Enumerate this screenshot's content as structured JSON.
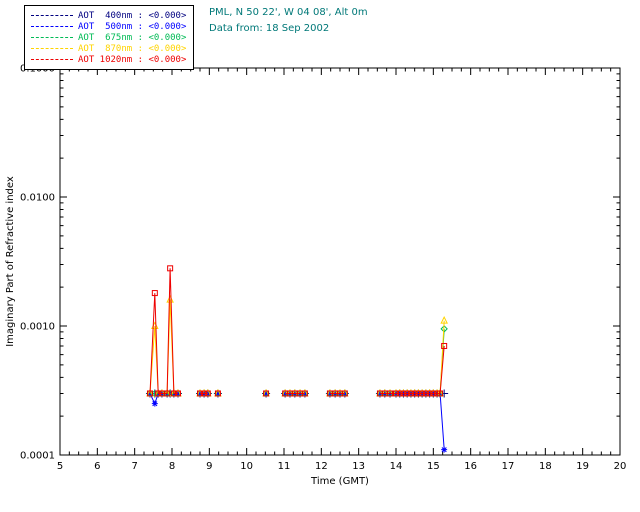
{
  "header": {
    "line1": "PML, N 50 22', W 04 08', Alt 0m",
    "line2": "Data from: 18 Sep 2002",
    "color": "#007878"
  },
  "legend": {
    "entries": [
      {
        "label": "AOT  400nm : <0.000>",
        "color": "#000080",
        "marker": "plus"
      },
      {
        "label": "AOT  500nm : <0.000>",
        "color": "#0000ff",
        "marker": "asterisk"
      },
      {
        "label": "AOT  675nm : <0.000>",
        "color": "#00bb55",
        "marker": "diamond"
      },
      {
        "label": "AOT  870nm : <0.000>",
        "color": "#ffd400",
        "marker": "triangle"
      },
      {
        "label": "AOT 1020nm : <0.000>",
        "color": "#ee0000",
        "marker": "square"
      }
    ]
  },
  "chart_data": {
    "type": "line",
    "title": "",
    "xlabel": "Time (GMT)",
    "ylabel": "Imaginary Part of Refractive index",
    "xlim": [
      5,
      20
    ],
    "ylim": [
      0.0001,
      0.1
    ],
    "yscale": "log",
    "grid": false,
    "legend_position": "top-left",
    "x_ticks": [
      5,
      6,
      7,
      8,
      9,
      10,
      11,
      12,
      13,
      14,
      15,
      16,
      17,
      18,
      19,
      20
    ],
    "y_ticks": [
      0.0001,
      0.001,
      0.01,
      0.1
    ],
    "y_tick_labels": [
      "0.0001",
      "0.0010",
      "0.0100",
      "0.1000"
    ],
    "x": [
      7.41,
      7.54,
      7.63,
      7.73,
      7.87,
      7.95,
      8.05,
      8.16,
      8.75,
      8.86,
      8.96,
      9.23,
      10.52,
      11.03,
      11.16,
      11.29,
      11.43,
      11.56,
      12.23,
      12.37,
      12.5,
      12.63,
      13.57,
      13.7,
      13.84,
      14.0,
      14.1,
      14.2,
      14.3,
      14.4,
      14.5,
      14.6,
      14.7,
      14.8,
      14.9,
      15.0,
      15.1,
      15.18,
      15.29
    ],
    "series": [
      {
        "name": "AOT 400nm",
        "color": "#000080",
        "marker": "plus",
        "values": [
          0.0003,
          0.0003,
          0.0003,
          0.0003,
          0.0003,
          0.0003,
          0.0003,
          0.0003,
          0.0003,
          0.0003,
          0.0003,
          0.0003,
          0.0003,
          0.0003,
          0.0003,
          0.0003,
          0.0003,
          0.0003,
          0.0003,
          0.0003,
          0.0003,
          0.0003,
          0.0003,
          0.0003,
          0.0003,
          0.0003,
          0.0003,
          0.0003,
          0.0003,
          0.0003,
          0.0003,
          0.0003,
          0.0003,
          0.0003,
          0.0003,
          0.0003,
          0.0003,
          0.0003,
          0.0003
        ]
      },
      {
        "name": "AOT 500nm",
        "color": "#0000ff",
        "marker": "asterisk",
        "values": [
          0.0003,
          0.00025,
          0.0003,
          0.0003,
          0.0003,
          0.0003,
          0.0003,
          0.0003,
          0.0003,
          0.0003,
          0.0003,
          0.0003,
          0.0003,
          0.0003,
          0.0003,
          0.0003,
          0.0003,
          0.0003,
          0.0003,
          0.0003,
          0.0003,
          0.0003,
          0.0003,
          0.0003,
          0.0003,
          0.0003,
          0.0003,
          0.0003,
          0.0003,
          0.0003,
          0.0003,
          0.0003,
          0.0003,
          0.0003,
          0.0003,
          0.0003,
          0.0003,
          0.0003,
          0.00011
        ]
      },
      {
        "name": "AOT 675nm",
        "color": "#00bb55",
        "marker": "diamond",
        "values": [
          0.0003,
          0.0003,
          0.0003,
          0.0003,
          0.0003,
          0.0003,
          0.0003,
          0.0003,
          0.0003,
          0.0003,
          0.0003,
          0.0003,
          0.0003,
          0.0003,
          0.0003,
          0.0003,
          0.0003,
          0.0003,
          0.0003,
          0.0003,
          0.0003,
          0.0003,
          0.0003,
          0.0003,
          0.0003,
          0.0003,
          0.0003,
          0.0003,
          0.0003,
          0.0003,
          0.0003,
          0.0003,
          0.0003,
          0.0003,
          0.0003,
          0.0003,
          0.0003,
          0.0003,
          0.00095
        ]
      },
      {
        "name": "AOT 870nm",
        "color": "#ffd400",
        "marker": "triangle",
        "values": [
          0.0003,
          0.001,
          0.0003,
          0.0003,
          0.0003,
          0.0016,
          0.0003,
          0.0003,
          0.0003,
          0.0003,
          0.0003,
          0.0003,
          0.0003,
          0.0003,
          0.0003,
          0.0003,
          0.0003,
          0.0003,
          0.0003,
          0.0003,
          0.0003,
          0.0003,
          0.0003,
          0.0003,
          0.0003,
          0.0003,
          0.0003,
          0.0003,
          0.0003,
          0.0003,
          0.0003,
          0.0003,
          0.0003,
          0.0003,
          0.0003,
          0.0003,
          0.0003,
          0.0003,
          0.0011
        ]
      },
      {
        "name": "AOT 1020nm",
        "color": "#ee0000",
        "marker": "square",
        "values": [
          0.0003,
          0.0018,
          0.0003,
          0.0003,
          0.0003,
          0.0028,
          0.0003,
          0.0003,
          0.0003,
          0.0003,
          0.0003,
          0.0003,
          0.0003,
          0.0003,
          0.0003,
          0.0003,
          0.0003,
          0.0003,
          0.0003,
          0.0003,
          0.0003,
          0.0003,
          0.0003,
          0.0003,
          0.0003,
          0.0003,
          0.0003,
          0.0003,
          0.0003,
          0.0003,
          0.0003,
          0.0003,
          0.0003,
          0.0003,
          0.0003,
          0.0003,
          0.0003,
          0.0003,
          0.0007
        ]
      }
    ]
  }
}
